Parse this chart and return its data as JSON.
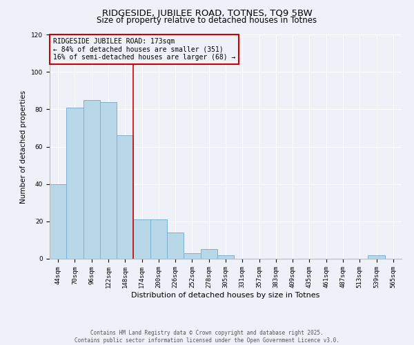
{
  "title": "RIDGESIDE, JUBILEE ROAD, TOTNES, TQ9 5BW",
  "subtitle": "Size of property relative to detached houses in Totnes",
  "xlabel": "Distribution of detached houses by size in Totnes",
  "ylabel": "Number of detached properties",
  "bar_labels": [
    "44sqm",
    "70sqm",
    "96sqm",
    "122sqm",
    "148sqm",
    "174sqm",
    "200sqm",
    "226sqm",
    "252sqm",
    "278sqm",
    "305sqm",
    "331sqm",
    "357sqm",
    "383sqm",
    "409sqm",
    "435sqm",
    "461sqm",
    "487sqm",
    "513sqm",
    "539sqm",
    "565sqm"
  ],
  "bar_values": [
    40,
    81,
    85,
    84,
    66,
    21,
    21,
    14,
    3,
    5,
    2,
    0,
    0,
    0,
    0,
    0,
    0,
    0,
    0,
    2,
    0
  ],
  "bar_color": "#b8d8e8",
  "bar_edge_color": "#7bafd4",
  "vline_color": "#cc0000",
  "annotation_title": "RIDGESIDE JUBILEE ROAD: 173sqm",
  "annotation_line1": "← 84% of detached houses are smaller (351)",
  "annotation_line2": "16% of semi-detached houses are larger (68) →",
  "annotation_box_color": "#cc0000",
  "ylim": [
    0,
    120
  ],
  "yticks": [
    0,
    20,
    40,
    60,
    80,
    100,
    120
  ],
  "background_color": "#eef2f8",
  "grid_color": "#ffffff",
  "footer1": "Contains HM Land Registry data © Crown copyright and database right 2025.",
  "footer2": "Contains public sector information licensed under the Open Government Licence v3.0.",
  "title_fontsize": 9.5,
  "subtitle_fontsize": 8.5,
  "tick_fontsize": 6.5,
  "ylabel_fontsize": 7.5,
  "xlabel_fontsize": 8,
  "annot_fontsize": 7,
  "footer_fontsize": 5.5
}
